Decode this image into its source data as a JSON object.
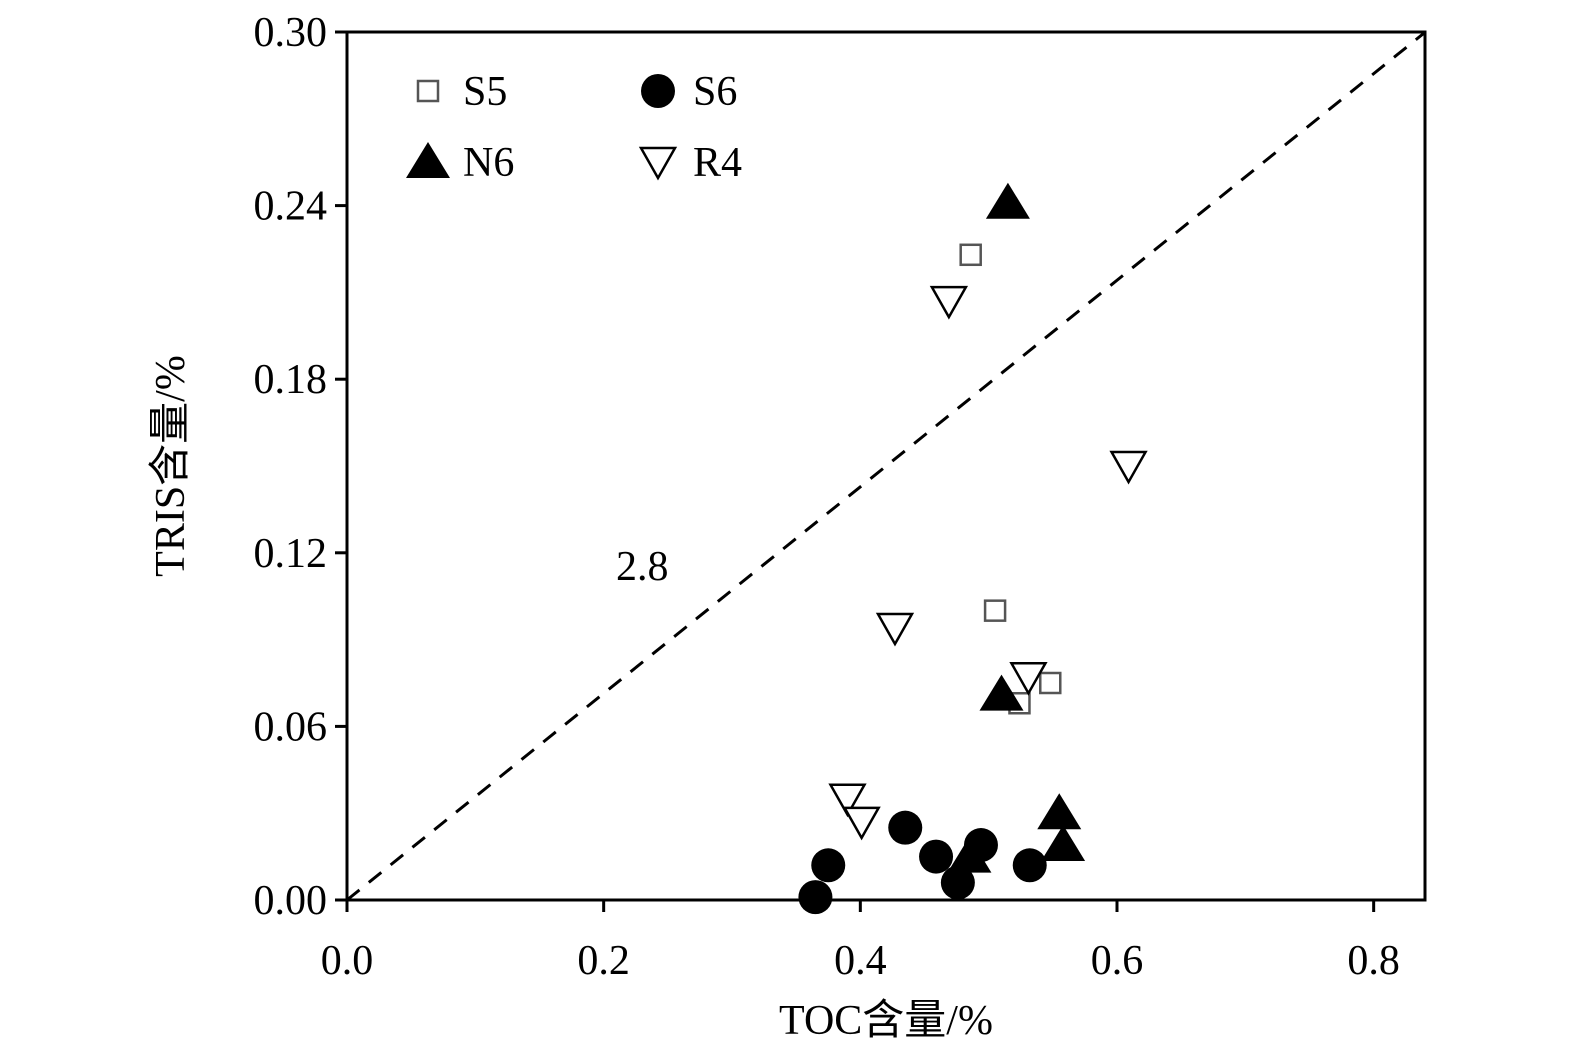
{
  "chart_data": {
    "type": "scatter",
    "xlabel": "TOC含量/%",
    "ylabel": "TRIS含量/%",
    "xlim": [
      0,
      0.84
    ],
    "ylim": [
      0,
      0.3
    ],
    "x_ticks": [
      "0.0",
      "0.2",
      "0.4",
      "0.6",
      "0.8"
    ],
    "y_ticks": [
      "0.00",
      "0.06",
      "0.12",
      "0.18",
      "0.24",
      "0.30"
    ],
    "grid": false,
    "legend_position": "top-left",
    "reference_line": {
      "slope": 0.357,
      "label": "2.8",
      "style": "dashed"
    },
    "series": [
      {
        "name": "S5",
        "marker": "open-square",
        "color": "#555555",
        "points": [
          [
            0.486,
            0.223
          ],
          [
            0.505,
            0.1
          ],
          [
            0.524,
            0.068
          ],
          [
            0.548,
            0.075
          ]
        ]
      },
      {
        "name": "S6",
        "marker": "filled-circle",
        "color": "#000000",
        "points": [
          [
            0.365,
            0.001
          ],
          [
            0.375,
            0.012
          ],
          [
            0.435,
            0.025
          ],
          [
            0.459,
            0.015
          ],
          [
            0.476,
            0.006
          ],
          [
            0.494,
            0.019
          ],
          [
            0.532,
            0.012
          ]
        ]
      },
      {
        "name": "N6",
        "marker": "filled-triangle-up",
        "color": "#000000",
        "points": [
          [
            0.515,
            0.241
          ],
          [
            0.51,
            0.071
          ],
          [
            0.555,
            0.03
          ],
          [
            0.558,
            0.019
          ],
          [
            0.485,
            0.015
          ]
        ]
      },
      {
        "name": "R4",
        "marker": "open-triangle-down",
        "color": "#000000",
        "points": [
          [
            0.469,
            0.207
          ],
          [
            0.609,
            0.15
          ],
          [
            0.427,
            0.094
          ],
          [
            0.531,
            0.077
          ],
          [
            0.39,
            0.035
          ],
          [
            0.401,
            0.027
          ]
        ]
      }
    ]
  }
}
